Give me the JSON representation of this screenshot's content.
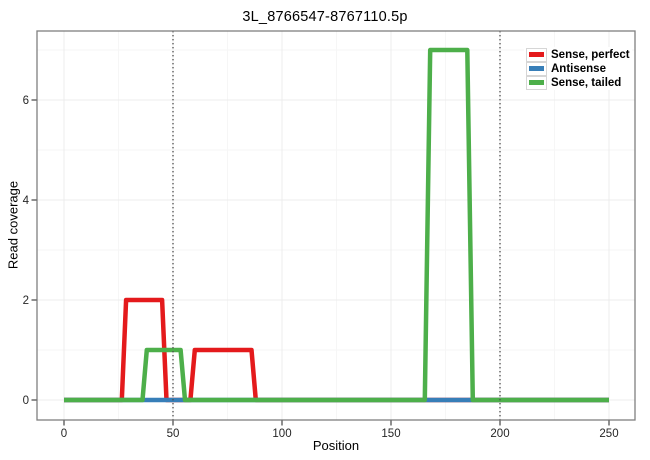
{
  "chart_data": {
    "type": "line",
    "title": "3L_8766547-8767110.5p",
    "xlabel": "Position",
    "ylabel": "Read coverage",
    "xlim": [
      -12,
      262
    ],
    "ylim": [
      -0.4,
      7.4
    ],
    "x_major_ticks": [
      0,
      50,
      100,
      150,
      200,
      250
    ],
    "x_minor_ticks": [
      25,
      75,
      125,
      175,
      225
    ],
    "y_major_ticks": [
      0,
      2,
      4,
      6
    ],
    "y_minor_ticks": [
      1,
      3,
      5,
      7
    ],
    "vlines": {
      "positions": [
        50,
        200
      ],
      "style": "dotted",
      "color": "#4d4d4d"
    },
    "grid": {
      "major_color": "#ececec",
      "minor_color": "#f6f6f6"
    },
    "panel_border_color": "#7f7f7f",
    "tick_color": "#333333",
    "tick_label_color": "#262626",
    "legend_position": "top-right",
    "series": [
      {
        "name": "Sense, perfect",
        "color": "#e41a1c",
        "points": [
          [
            0,
            0
          ],
          [
            26.5,
            0
          ],
          [
            28.5,
            2
          ],
          [
            45,
            2
          ],
          [
            47,
            0
          ],
          [
            58,
            0
          ],
          [
            60,
            1
          ],
          [
            86,
            1
          ],
          [
            88,
            0
          ],
          [
            250,
            0
          ]
        ]
      },
      {
        "name": "Antisense",
        "color": "#377eb8",
        "points": [
          [
            0,
            0
          ],
          [
            250,
            0
          ]
        ]
      },
      {
        "name": "Sense, tailed",
        "color": "#4daf4a",
        "points": [
          [
            0,
            0
          ],
          [
            36,
            0
          ],
          [
            38,
            1
          ],
          [
            53.5,
            1
          ],
          [
            55.5,
            0
          ],
          [
            165.5,
            0
          ],
          [
            168,
            7
          ],
          [
            185,
            7
          ],
          [
            187.5,
            0
          ],
          [
            250,
            0
          ]
        ]
      }
    ]
  }
}
